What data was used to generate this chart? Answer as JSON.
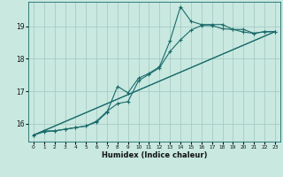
{
  "xlabel": "Humidex (Indice chaleur)",
  "background_color": "#c8e8e0",
  "grid_color": "#a0c8c0",
  "line_color": "#1a6b6b",
  "xlim": [
    -0.5,
    23.5
  ],
  "ylim": [
    15.45,
    19.75
  ],
  "yticks": [
    16,
    17,
    18,
    19
  ],
  "xticks": [
    0,
    1,
    2,
    3,
    4,
    5,
    6,
    7,
    8,
    9,
    10,
    11,
    12,
    13,
    14,
    15,
    16,
    17,
    18,
    19,
    20,
    21,
    22,
    23
  ],
  "line1_x": [
    0,
    1,
    2,
    3,
    4,
    5,
    6,
    7,
    8,
    9,
    10,
    11,
    12,
    13,
    14,
    15,
    16,
    17,
    18,
    19,
    20,
    21,
    22,
    23
  ],
  "line1_y": [
    15.65,
    15.78,
    15.78,
    15.83,
    15.88,
    15.93,
    16.05,
    16.35,
    17.15,
    16.95,
    17.4,
    17.55,
    17.75,
    18.55,
    19.6,
    19.15,
    19.05,
    19.05,
    19.05,
    18.9,
    18.9,
    18.78,
    18.83,
    18.83
  ],
  "line2_x": [
    0,
    1,
    2,
    3,
    4,
    5,
    6,
    7,
    8,
    9,
    10,
    11,
    12,
    13,
    14,
    15,
    16,
    17,
    18,
    19,
    20,
    21,
    22,
    23
  ],
  "line2_y": [
    15.65,
    15.75,
    15.78,
    15.83,
    15.88,
    15.93,
    16.08,
    16.38,
    16.62,
    16.68,
    17.32,
    17.52,
    17.72,
    18.22,
    18.58,
    18.88,
    19.02,
    19.02,
    18.92,
    18.9,
    18.82,
    18.78,
    18.83,
    18.83
  ],
  "line3_x": [
    0,
    23
  ],
  "line3_y": [
    15.65,
    18.83
  ],
  "line4_x": [
    0,
    23
  ],
  "line4_y": [
    15.65,
    18.83
  ]
}
